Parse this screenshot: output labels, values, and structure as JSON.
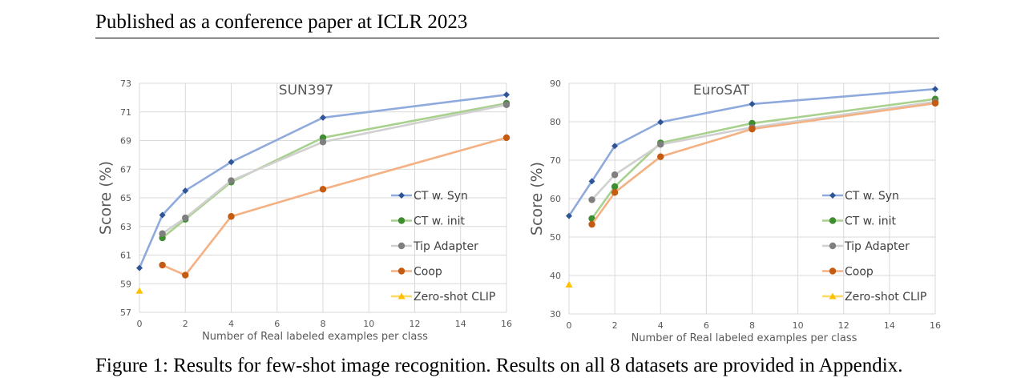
{
  "header": "Published as a conference paper at ICLR 2023",
  "caption": "Figure 1: Results for few-shot image recognition. Results on all 8 datasets are provided in Appendix.",
  "chart_data": [
    {
      "type": "line",
      "title": "SUN397",
      "xlabel": "Number of Real labeled examples per class",
      "ylabel": "Score (%)",
      "xlim": [
        0,
        16
      ],
      "ylim": [
        57,
        73
      ],
      "xticks": [
        0,
        2,
        4,
        6,
        8,
        10,
        12,
        14,
        16
      ],
      "yticks": [
        57,
        59,
        61,
        63,
        65,
        67,
        69,
        71,
        73
      ],
      "grid": true,
      "legend": "right",
      "series": [
        {
          "name": "CT w. Syn",
          "color": "#8faadc",
          "marker": "diamond",
          "marker_color": "#2f5597",
          "x": [
            0,
            1,
            2,
            4,
            8,
            16
          ],
          "y": [
            60.1,
            63.8,
            65.5,
            67.5,
            70.6,
            72.2
          ]
        },
        {
          "name": "CT w. init",
          "color": "#a9d18e",
          "marker": "circle",
          "marker_color": "#3e8e2f",
          "x": [
            1,
            2,
            4,
            8,
            16
          ],
          "y": [
            62.2,
            63.5,
            66.1,
            69.2,
            71.6
          ]
        },
        {
          "name": "Tip Adapter",
          "color": "#d0d0d0",
          "marker": "circle",
          "marker_color": "#7f7f7f",
          "x": [
            1,
            2,
            4,
            8,
            16
          ],
          "y": [
            62.5,
            63.6,
            66.2,
            68.9,
            71.5
          ]
        },
        {
          "name": "Coop",
          "color": "#f4b183",
          "marker": "circle",
          "marker_color": "#c55a11",
          "x": [
            1,
            2,
            4,
            8,
            16
          ],
          "y": [
            60.3,
            59.6,
            63.7,
            65.6,
            69.2
          ]
        },
        {
          "name": "Zero-shot CLIP",
          "color": "#ffd966",
          "marker": "triangle",
          "marker_color": "#ffc000",
          "x": [
            0
          ],
          "y": [
            58.5
          ]
        }
      ]
    },
    {
      "type": "line",
      "title": "EuroSAT",
      "xlabel": "Number of Real labeled examples per class",
      "ylabel": "Score (%)",
      "xlim": [
        0,
        16
      ],
      "ylim": [
        30,
        90
      ],
      "xticks": [
        0,
        2,
        4,
        6,
        8,
        10,
        12,
        14,
        16
      ],
      "yticks": [
        30,
        40,
        50,
        60,
        70,
        80,
        90
      ],
      "grid": true,
      "legend": "right",
      "series": [
        {
          "name": "CT w. Syn",
          "color": "#8faadc",
          "marker": "diamond",
          "marker_color": "#2f5597",
          "x": [
            0,
            1,
            2,
            4,
            8,
            16
          ],
          "y": [
            55.5,
            64.5,
            73.7,
            79.9,
            84.6,
            88.5
          ]
        },
        {
          "name": "CT w. init",
          "color": "#a9d18e",
          "marker": "circle",
          "marker_color": "#3e8e2f",
          "x": [
            1,
            2,
            4,
            8,
            16
          ],
          "y": [
            54.8,
            63.1,
            74.5,
            79.6,
            85.9
          ]
        },
        {
          "name": "Tip Adapter",
          "color": "#d0d0d0",
          "marker": "circle",
          "marker_color": "#7f7f7f",
          "x": [
            1,
            2,
            4,
            8,
            16
          ],
          "y": [
            59.7,
            66.2,
            74.1,
            78.5,
            85.2
          ]
        },
        {
          "name": "Coop",
          "color": "#f4b183",
          "marker": "circle",
          "marker_color": "#c55a11",
          "x": [
            1,
            2,
            4,
            8,
            16
          ],
          "y": [
            53.3,
            61.6,
            70.9,
            78.1,
            84.8
          ]
        },
        {
          "name": "Zero-shot CLIP",
          "color": "#ffd966",
          "marker": "triangle",
          "marker_color": "#ffc000",
          "x": [
            0
          ],
          "y": [
            37.6
          ]
        }
      ]
    }
  ]
}
